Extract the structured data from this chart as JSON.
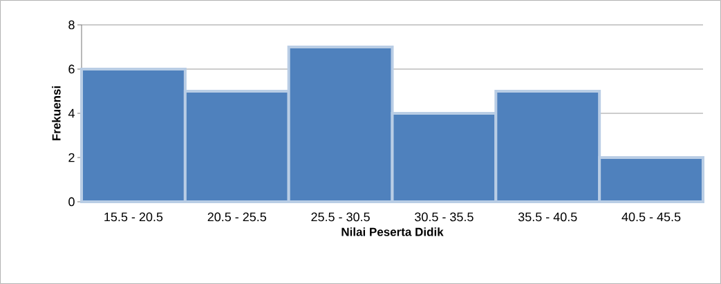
{
  "chart_data": {
    "type": "bar",
    "xlabel": "Nilai Peserta Didik",
    "ylabel": "Frekuensi",
    "categories": [
      "15.5 - 20.5",
      "20.5 - 25.5",
      "25.5 - 30.5",
      "30.5 - 35.5",
      "35.5 - 40.5",
      "40.5 - 45.5"
    ],
    "values": [
      6,
      5,
      7,
      4,
      5,
      2
    ],
    "color": "#4f81bd",
    "ylim": [
      0,
      8
    ],
    "yticks": [
      0,
      2,
      4,
      6,
      8
    ],
    "grid": "y"
  }
}
